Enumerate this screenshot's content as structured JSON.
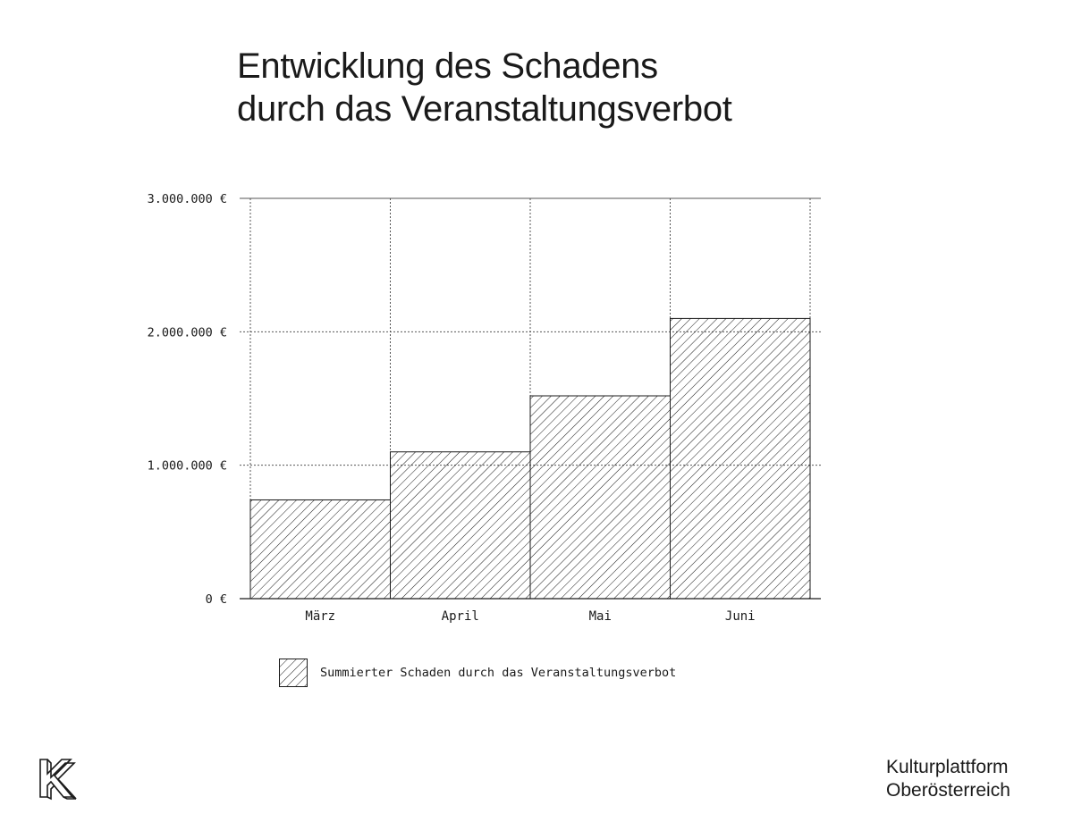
{
  "chart_data": {
    "type": "bar",
    "title_lines": [
      "Entwicklung des Schadens",
      "durch das Veranstaltungsverbot"
    ],
    "categories": [
      "März",
      "April",
      "Mai",
      "Juni"
    ],
    "series": [
      {
        "name": "Summierter Schaden durch das Veranstaltungsverbot",
        "values": [
          740000,
          1100000,
          1520000,
          2100000
        ]
      }
    ],
    "yticks": [
      {
        "value": 0,
        "label": "0 €"
      },
      {
        "value": 1000000,
        "label": "1.000.000 €"
      },
      {
        "value": 2000000,
        "label": "2.000.000 €"
      },
      {
        "value": 3000000,
        "label": "3.000.000 €"
      }
    ],
    "ylim": [
      0,
      3000000
    ],
    "grid": true,
    "bar_fill": "diagonal-hatch",
    "legend_position": "bottom-left",
    "colors": {
      "ink": "#1a1a1a",
      "grid": "#555555"
    }
  },
  "brand": {
    "name_line1": "Kulturplattform",
    "name_line2": "Oberösterreich",
    "logo_icon": "k-logo-icon"
  }
}
